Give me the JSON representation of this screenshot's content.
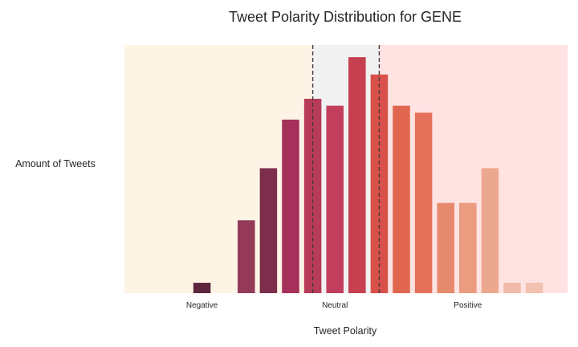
{
  "chart_data": {
    "type": "bar",
    "title": "Tweet Polarity Distribution for GENE",
    "xlabel": "Tweet Polarity",
    "ylabel": "Amount of Tweets",
    "tick_labels": [
      "Negative",
      "Neutral",
      "Positive"
    ],
    "tick_bins": [
      4,
      10,
      16
    ],
    "categories": [
      "1",
      "2",
      "3",
      "4",
      "5",
      "6",
      "7",
      "8",
      "9",
      "10",
      "11",
      "12",
      "13",
      "14",
      "15",
      "16",
      "17",
      "18",
      "19",
      "20"
    ],
    "values": [
      0,
      0,
      0,
      0.3,
      0,
      2.1,
      3.6,
      5.0,
      5.6,
      5.4,
      6.8,
      6.3,
      5.4,
      5.2,
      2.6,
      2.6,
      3.6,
      0.3,
      0.3,
      0
    ],
    "ylim": [
      0,
      7.15
    ],
    "neutral_lines": [
      8.5,
      11.5
    ],
    "grid": false,
    "colors": {
      "bars": [
        "#5a2340",
        "#6a2a48",
        "#7a2f4e",
        "#5f2640",
        "#873554",
        "#943a58",
        "#7d2e4c",
        "#a5315a",
        "#b83c5a",
        "#c13f5c",
        "#c6404f",
        "#d9504b",
        "#e0664f",
        "#e5715a",
        "#e68a6e",
        "#ea9b80",
        "#eca88f",
        "#f0bca9",
        "#f1c2af",
        "#f3cbbd"
      ],
      "negative_region": "#fdf4e6",
      "neutral_region": "#f1f1f1",
      "positive_region": "#ffe3e3",
      "neutral_line": "#4a3a3a"
    }
  }
}
